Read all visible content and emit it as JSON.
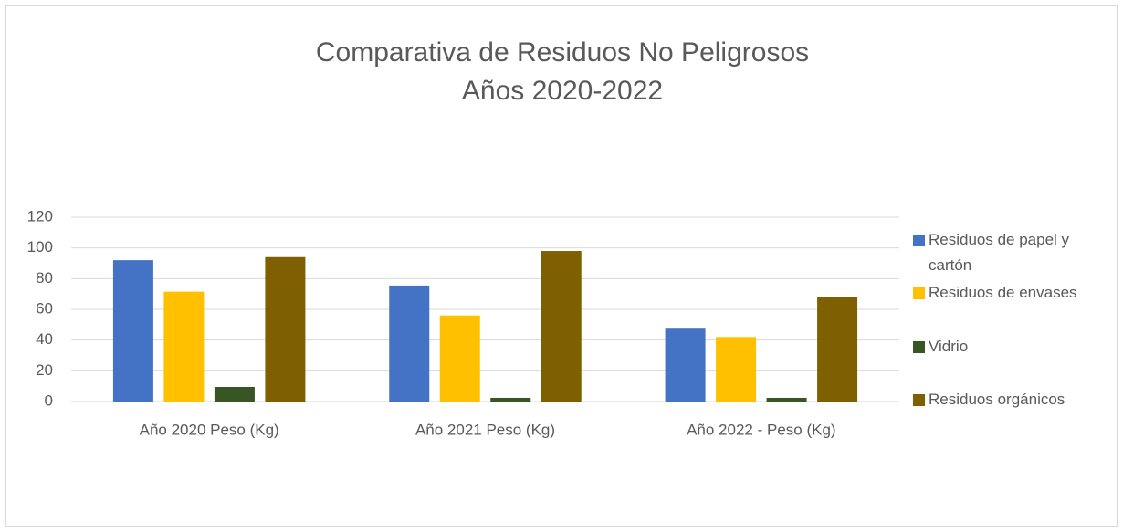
{
  "chart_data": {
    "type": "bar",
    "title": "Comparativa de Residuos No Peligrosos",
    "subtitle": "Años 2020-2022",
    "categories": [
      "Año 2020 Peso (Kg)",
      "Año 2021 Peso (Kg)",
      "Año 2022 - Peso (Kg)"
    ],
    "series": [
      {
        "name": "Residuos de papel y cartón",
        "color": "#4472c4",
        "values": [
          92,
          75.5,
          48
        ]
      },
      {
        "name": "Residuos de envases",
        "color": "#ffc000",
        "values": [
          71.5,
          56,
          42
        ]
      },
      {
        "name": "Vidrio",
        "color": "#375623",
        "values": [
          9.5,
          2.4,
          2.4
        ]
      },
      {
        "name": "Residuos orgánicos",
        "color": "#7f6000",
        "values": [
          94,
          98,
          68
        ]
      }
    ],
    "ylim": [
      0,
      120
    ],
    "yticks": [
      0,
      20,
      40,
      60,
      80,
      100,
      120
    ],
    "grid": true,
    "legend": "right"
  }
}
